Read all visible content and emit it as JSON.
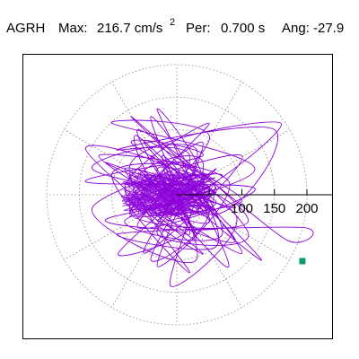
{
  "header": {
    "station": "AGRH",
    "max_label": "Max:",
    "max_value": "216.7 cm/s",
    "max_exponent": "2",
    "period_label": "Per:",
    "period_value": "0.700 s",
    "angle_label": "Ang:",
    "angle_value": "-27.9"
  },
  "colors": {
    "trace": "#8b00d8",
    "marker": "#0f9b72",
    "grid": "#888888",
    "axis": "#000000"
  },
  "chart_data": {
    "type": "scatter",
    "title": "AGRH  Max: 216.7 cm/s2  Per: 0.700 s  Ang: -27.9",
    "polar_grid": true,
    "grid_radii": [
      50,
      100,
      150,
      200
    ],
    "radial_tick_labels": [
      "100",
      "150",
      "200"
    ],
    "angle_deg": -27.9,
    "max_value": 216.7,
    "x_range": [
      -215,
      255
    ],
    "y_range": [
      -215,
      215
    ],
    "path_points": [
      [
        0,
        0
      ],
      [
        -60,
        40
      ],
      [
        60,
        -25
      ],
      [
        -110,
        50
      ],
      [
        90,
        -20
      ],
      [
        -70,
        80
      ],
      [
        40,
        60
      ],
      [
        -140,
        20
      ],
      [
        120,
        10
      ],
      [
        -60,
        -50
      ],
      [
        50,
        90
      ],
      [
        -100,
        110
      ],
      [
        120,
        40
      ],
      [
        -80,
        -40
      ],
      [
        70,
        -60
      ],
      [
        -40,
        120
      ],
      [
        30,
        -100
      ],
      [
        -130,
        -20
      ],
      [
        100,
        60
      ],
      [
        -50,
        -90
      ],
      [
        20,
        60
      ],
      [
        -90,
        70
      ],
      [
        150,
        100
      ],
      [
        60,
        -30
      ],
      [
        -120,
        60
      ],
      [
        80,
        20
      ],
      [
        -30,
        -110
      ],
      [
        40,
        80
      ],
      [
        -70,
        -30
      ],
      [
        110,
        -40
      ],
      [
        -60,
        100
      ],
      [
        30,
        -60
      ],
      [
        -20,
        50
      ],
      [
        100,
        -10
      ],
      [
        -60,
        -20
      ],
      [
        50,
        110
      ],
      [
        -80,
        10
      ],
      [
        40,
        -90
      ],
      [
        -140,
        70
      ],
      [
        10,
        30
      ],
      [
        60,
        -80
      ],
      [
        -90,
        -60
      ],
      [
        190,
        -50
      ],
      [
        170,
        -70
      ],
      [
        40,
        30
      ],
      [
        -50,
        80
      ],
      [
        90,
        -70
      ],
      [
        -40,
        -20
      ],
      [
        30,
        40
      ],
      [
        -100,
        30
      ],
      [
        20,
        -120
      ],
      [
        -70,
        50
      ],
      [
        160,
        110
      ],
      [
        0,
        -10
      ],
      [
        -60,
        90
      ],
      [
        130,
        -100
      ],
      [
        -20,
        20
      ],
      [
        70,
        -50
      ],
      [
        -110,
        -40
      ],
      [
        40,
        10
      ],
      [
        -30,
        130
      ],
      [
        80,
        -110
      ],
      [
        -50,
        30
      ],
      [
        20,
        -50
      ],
      [
        -90,
        -90
      ],
      [
        60,
        40
      ],
      [
        -30,
        -60
      ],
      [
        110,
        -60
      ],
      [
        -70,
        120
      ],
      [
        50,
        -20
      ],
      [
        -40,
        -100
      ],
      [
        30,
        70
      ],
      [
        -130,
        40
      ],
      [
        90,
        -30
      ],
      [
        -10,
        -140
      ],
      [
        40,
        50
      ],
      [
        -60,
        20
      ],
      [
        100,
        -90
      ],
      [
        -20,
        60
      ],
      [
        10,
        -30
      ],
      [
        -50,
        10
      ],
      [
        70,
        30
      ],
      [
        -30,
        -40
      ],
      [
        60,
        -10
      ],
      [
        -80,
        40
      ],
      [
        30,
        -70
      ],
      [
        -40,
        60
      ],
      [
        50,
        -40
      ],
      [
        -20,
        -20
      ],
      [
        40,
        20
      ],
      [
        -60,
        -10
      ],
      [
        20,
        -60
      ],
      [
        -30,
        40
      ],
      [
        60,
        10
      ],
      [
        -40,
        -30
      ],
      [
        30,
        30
      ],
      [
        -20,
        10
      ],
      [
        10,
        -20
      ],
      [
        -10,
        0
      ],
      [
        0,
        0
      ]
    ],
    "marker_point": [
      193,
      -102
    ]
  }
}
